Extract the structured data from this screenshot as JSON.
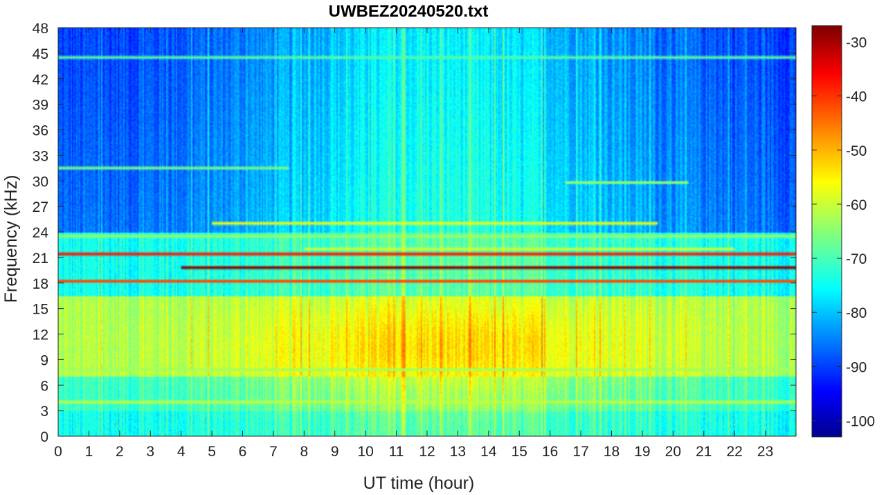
{
  "chart_data": {
    "type": "heatmap",
    "title": "UWBEZ20240520.txt",
    "xlabel": "UT time (hour)",
    "ylabel": "Frequency (kHz)",
    "xlim": [
      0,
      24
    ],
    "ylim": [
      0,
      48
    ],
    "x_ticks": [
      0,
      1,
      2,
      3,
      4,
      5,
      6,
      7,
      8,
      9,
      10,
      11,
      12,
      13,
      14,
      15,
      16,
      17,
      18,
      19,
      20,
      21,
      22,
      23
    ],
    "y_ticks": [
      0,
      3,
      6,
      9,
      12,
      15,
      18,
      21,
      24,
      27,
      30,
      33,
      36,
      39,
      42,
      45,
      48
    ],
    "colormap": "jet",
    "clim": [
      -103,
      -27
    ],
    "colorbar_ticks": [
      -30,
      -40,
      -50,
      -60,
      -70,
      -80,
      -90,
      -100
    ],
    "colors": {
      "low": "#00008f",
      "high": "#7f0000"
    },
    "narrowband_lines": [
      {
        "freq_khz": 44.5,
        "start_hour": 0,
        "end_hour": 24,
        "level_db": -68
      },
      {
        "freq_khz": 31.5,
        "start_hour": 0,
        "end_hour": 7.5,
        "level_db": -66
      },
      {
        "freq_khz": 29.8,
        "start_hour": 16.5,
        "end_hour": 20.5,
        "level_db": -64
      },
      {
        "freq_khz": 25.0,
        "start_hour": 5,
        "end_hour": 19.5,
        "level_db": -57
      },
      {
        "freq_khz": 23.5,
        "start_hour": 0,
        "end_hour": 24,
        "level_db": -63
      },
      {
        "freq_khz": 22.0,
        "start_hour": 8,
        "end_hour": 22,
        "level_db": -60
      },
      {
        "freq_khz": 21.4,
        "start_hour": 0,
        "end_hour": 24,
        "level_db": -38
      },
      {
        "freq_khz": 19.8,
        "start_hour": 4,
        "end_hour": 24,
        "level_db": -28
      },
      {
        "freq_khz": 18.2,
        "start_hour": 0,
        "end_hour": 24,
        "level_db": -42
      },
      {
        "freq_khz": 7.8,
        "start_hour": 0,
        "end_hour": 24,
        "level_db": -62
      },
      {
        "freq_khz": 4.0,
        "start_hour": 0,
        "end_hour": 24,
        "level_db": -60
      }
    ]
  }
}
